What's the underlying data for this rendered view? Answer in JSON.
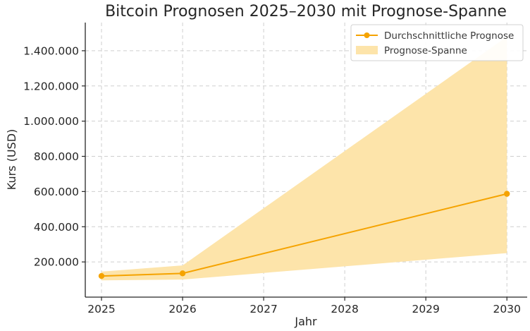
{
  "chart_data": {
    "type": "line",
    "title": "Bitcoin Prognosen 2025–2030 mit Prognose-Spanne",
    "xlabel": "Jahr",
    "ylabel": "Kurs (USD)",
    "x": [
      2025,
      2026,
      2030
    ],
    "x_ticks": [
      2025,
      2026,
      2027,
      2028,
      2029,
      2030
    ],
    "x_tick_labels": [
      "2025",
      "2026",
      "2027",
      "2028",
      "2029",
      "2030"
    ],
    "y_ticks": [
      200000,
      400000,
      600000,
      800000,
      1000000,
      1200000,
      1400000
    ],
    "y_tick_labels": [
      "200.000",
      "400.000",
      "600.000",
      "800.000",
      "1.000.000",
      "1.200.000",
      "1.400.000"
    ],
    "xlim": [
      2024.8,
      2030.25
    ],
    "ylim": [
      0,
      1560000
    ],
    "grid": true,
    "legend_position": "top-right",
    "series": [
      {
        "name": "Durchschnittliche Prognose",
        "type": "line",
        "marker": "circle",
        "color": "#f5a300",
        "values": [
          120000,
          135000,
          587000
        ]
      },
      {
        "name": "Prognose-Spanne",
        "type": "area",
        "color": "#fde4aa",
        "lower": [
          95000,
          100000,
          250000
        ],
        "upper": [
          145000,
          180000,
          1480000
        ]
      }
    ]
  }
}
